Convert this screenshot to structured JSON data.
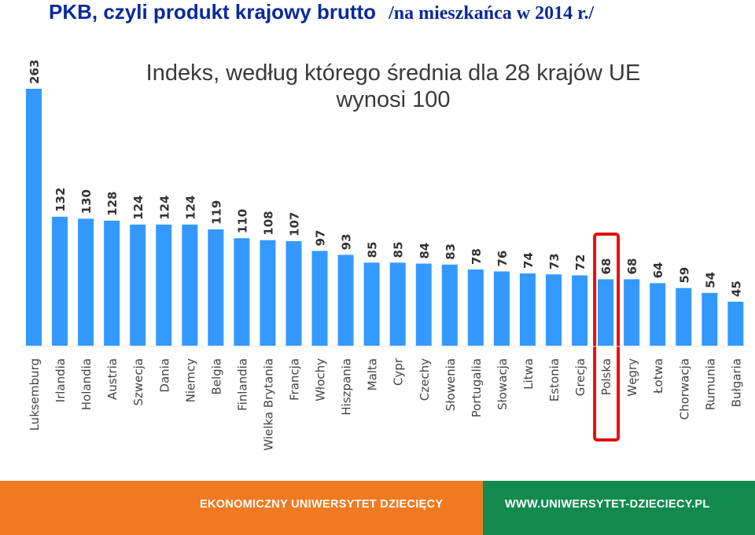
{
  "header": {
    "title": "PKB, czyli produkt krajowy brutto",
    "title_suffix": "/na mieszkańca w 2014 r./",
    "subtitle_line1": "Indeks, według którego średnia dla 28 krajów UE",
    "subtitle_line2": "wynosi 100"
  },
  "chart_data": {
    "type": "bar",
    "categories": [
      "Luksemburg",
      "Irlandia",
      "Holandia",
      "Austria",
      "Szwecja",
      "Dania",
      "Niemcy",
      "Belgia",
      "Finlandia",
      "Wielka Brytania",
      "Francja",
      "Włochy",
      "Hiszpania",
      "Malta",
      "Cypr",
      "Czechy",
      "Słowenia",
      "Portugalia",
      "Słowacja",
      "Litwa",
      "Estonia",
      "Grecja",
      "Polska",
      "Węgry",
      "Łotwa",
      "Chorwacja",
      "Rumunia",
      "Bułgaria"
    ],
    "values": [
      263,
      132,
      130,
      128,
      124,
      124,
      124,
      119,
      110,
      108,
      107,
      97,
      93,
      85,
      85,
      84,
      83,
      78,
      76,
      74,
      73,
      72,
      68,
      68,
      64,
      59,
      54,
      45
    ],
    "ylim": [
      0,
      263
    ],
    "grid": false,
    "highlight": "Polska",
    "bar_color": "#3399ff",
    "highlight_color": "#e01010"
  },
  "footer": {
    "left_text": "EKONOMICZNY UNIWERSYTET DZIECIĘCY",
    "right_text": "WWW.UNIWERSYTET-DZIECIECY.PL",
    "left_color": "#f07a22",
    "right_color": "#128a4e"
  }
}
